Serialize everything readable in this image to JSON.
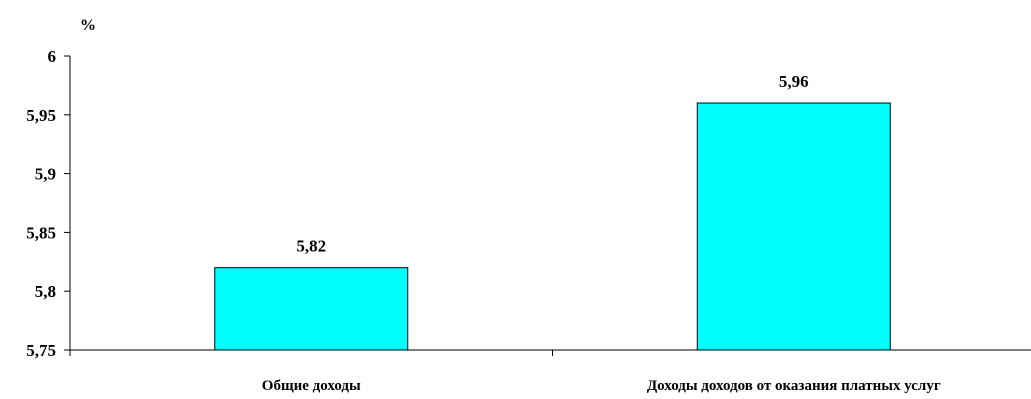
{
  "chart_data": {
    "type": "bar",
    "title": "",
    "xlabel": "",
    "ylabel": "%",
    "categories": [
      "Общие доходы",
      "Доходы доходов от оказания платных услуг"
    ],
    "values": [
      5.82,
      5.96
    ],
    "value_labels": [
      "5,82",
      "5,96"
    ],
    "ylim": [
      5.75,
      6
    ],
    "yticks": [
      5.75,
      5.8,
      5.85,
      5.9,
      5.95,
      6
    ],
    "ytick_labels": [
      "5,75",
      "5,8",
      "5,85",
      "5,9",
      "5,95",
      "6"
    ],
    "grid": false,
    "legend": "none",
    "colors": {
      "bar_fill": "#00FFFF",
      "bar_stroke": "#000000",
      "axis": "#000000"
    }
  }
}
